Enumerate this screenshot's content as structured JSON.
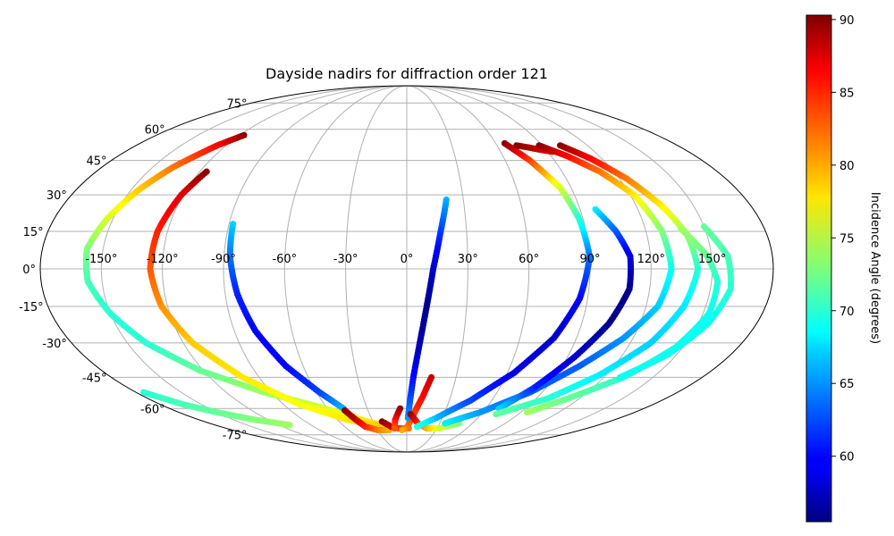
{
  "chart_data": {
    "type": "scatter",
    "projection": "mollweide",
    "title": "Dayside nadirs for diffraction order 121",
    "x_unit": "longitude (degrees)",
    "y_unit": "latitude (degrees)",
    "longitude_ticks": [
      "-150°",
      "-120°",
      "-90°",
      "-60°",
      "-30°",
      "0°",
      "30°",
      "60°",
      "90°",
      "120°",
      "150°"
    ],
    "latitude_ticks": [
      "75°",
      "60°",
      "45°",
      "30°",
      "15°",
      "0°",
      "-15°",
      "-30°",
      "-45°",
      "-60°",
      "-75°"
    ],
    "grid": true,
    "colorbar": {
      "label": "Incidence Angle (degrees)",
      "range": [
        55.5,
        90.3
      ],
      "ticks": [
        "60",
        "65",
        "70",
        "75",
        "80",
        "85",
        "90"
      ],
      "colormap": "jet"
    },
    "series": [
      {
        "points": [
          [
            -117,
            57,
            90
          ],
          [
            -126,
            52,
            86
          ],
          [
            -138,
            42,
            82
          ],
          [
            -146,
            32,
            79
          ],
          [
            -153,
            20,
            76
          ],
          [
            -158,
            8,
            73
          ],
          [
            -157,
            -5,
            71
          ],
          [
            -150,
            -18,
            70
          ],
          [
            -140,
            -30,
            70
          ],
          [
            -122,
            -42,
            72
          ],
          [
            -95,
            -52,
            74
          ],
          [
            -62,
            -60,
            76
          ],
          [
            -35,
            -67,
            78
          ],
          [
            -12,
            -71,
            80
          ]
        ]
      },
      {
        "points": [
          [
            -116,
            40,
            90
          ],
          [
            -121,
            30,
            87
          ],
          [
            -125,
            15,
            85
          ],
          [
            -126,
            0,
            83
          ],
          [
            -123,
            -15,
            81
          ],
          [
            -115,
            -30,
            79
          ],
          [
            -100,
            -45,
            78
          ],
          [
            -78,
            -58,
            77
          ],
          [
            -52,
            -66,
            78
          ],
          [
            -25,
            -70,
            79
          ]
        ]
      },
      {
        "points": [
          [
            -175,
            -52,
            70
          ],
          [
            -163,
            -58,
            71
          ],
          [
            -150,
            -62,
            72
          ],
          [
            -132,
            -66,
            73
          ],
          [
            -110,
            -69,
            74
          ]
        ]
      },
      {
        "points": [
          [
            -88,
            18,
            67
          ],
          [
            -87,
            5,
            64
          ],
          [
            -84,
            -10,
            61
          ],
          [
            -79,
            -25,
            60
          ],
          [
            -70,
            -40,
            60
          ],
          [
            -58,
            -52,
            62
          ],
          [
            -48,
            -60,
            66
          ]
        ]
      },
      {
        "points": [
          [
            -48,
            -61,
            90
          ],
          [
            -44,
            -66,
            88
          ],
          [
            -40,
            -70,
            85
          ],
          [
            -30,
            -72,
            82
          ],
          [
            -18,
            -72,
            80
          ]
        ]
      },
      {
        "points": [
          [
            -22,
            -67,
            90
          ],
          [
            -15,
            -70,
            88
          ],
          [
            -8,
            -71,
            85
          ],
          [
            2,
            -71,
            82
          ]
        ]
      },
      {
        "points": [
          [
            -5,
            -60,
            90
          ],
          [
            -10,
            -66,
            86
          ],
          [
            -12,
            -71,
            83
          ]
        ]
      },
      {
        "points": [
          [
            15,
            -45,
            88
          ],
          [
            11,
            -54,
            86
          ],
          [
            5,
            -64,
            84
          ],
          [
            0,
            -71,
            82
          ],
          [
            -5,
            -72,
            80
          ]
        ]
      },
      {
        "points": [
          [
            21,
            28,
            66
          ],
          [
            17,
            15,
            62
          ],
          [
            13,
            0,
            58
          ],
          [
            10,
            -15,
            56
          ],
          [
            7,
            -30,
            57
          ],
          [
            4,
            -45,
            60
          ],
          [
            2,
            -58,
            63
          ],
          [
            1,
            -65,
            65
          ]
        ]
      },
      {
        "points": [
          [
            3,
            -63,
            90
          ],
          [
            10,
            -68,
            85
          ],
          [
            20,
            -71,
            80
          ],
          [
            32,
            -71,
            76
          ],
          [
            48,
            -68,
            73
          ]
        ]
      },
      {
        "points": [
          [
            66,
            53,
            90
          ],
          [
            75,
            45,
            84
          ],
          [
            84,
            33,
            76
          ],
          [
            88,
            20,
            70
          ],
          [
            90,
            5,
            64
          ],
          [
            86,
            -12,
            60
          ],
          [
            78,
            -28,
            58
          ],
          [
            64,
            -43,
            59
          ],
          [
            45,
            -56,
            62
          ],
          [
            25,
            -65,
            66
          ],
          [
            10,
            -70,
            70
          ]
        ]
      },
      {
        "points": [
          [
            73,
            52,
            90
          ],
          [
            80,
            51,
            89
          ],
          [
            86,
            50,
            88
          ],
          [
            93,
            49,
            87
          ]
        ]
      },
      {
        "points": [
          [
            88,
            52,
            90
          ],
          [
            100,
            47,
            86
          ],
          [
            112,
            40,
            82
          ],
          [
            122,
            30,
            78
          ],
          [
            128,
            15,
            73
          ],
          [
            130,
            0,
            69
          ],
          [
            126,
            -15,
            67
          ],
          [
            115,
            -28,
            65
          ],
          [
            100,
            -40,
            63
          ],
          [
            82,
            -52,
            63
          ],
          [
            58,
            -62,
            65
          ],
          [
            35,
            -68,
            68
          ]
        ]
      },
      {
        "points": [
          [
            98,
            24,
            68
          ],
          [
            105,
            15,
            63
          ],
          [
            110,
            5,
            59
          ],
          [
            110,
            -8,
            56
          ],
          [
            104,
            -22,
            56
          ],
          [
            94,
            -36,
            58
          ],
          [
            82,
            -50,
            61
          ],
          [
            70,
            -60,
            67
          ]
        ]
      },
      {
        "points": [
          [
            102,
            52,
            90
          ],
          [
            113,
            46,
            86
          ],
          [
            124,
            37,
            82
          ],
          [
            133,
            26,
            78
          ],
          [
            140,
            14,
            74
          ],
          [
            143,
            0,
            70
          ],
          [
            139,
            -15,
            68
          ],
          [
            131,
            -30,
            67
          ],
          [
            116,
            -44,
            68
          ],
          [
            98,
            -55,
            70
          ],
          [
            72,
            -63,
            72
          ]
        ]
      },
      {
        "points": [
          [
            138,
            16,
            74
          ],
          [
            148,
            5,
            72
          ],
          [
            153,
            -5,
            70
          ],
          [
            153,
            -18,
            69
          ],
          [
            146,
            -32,
            69
          ],
          [
            132,
            -45,
            70
          ],
          [
            112,
            -55,
            72
          ],
          [
            95,
            -62,
            74
          ]
        ]
      },
      {
        "points": [
          [
            150,
            17,
            72
          ],
          [
            158,
            5,
            71
          ],
          [
            160,
            -8,
            70
          ],
          [
            155,
            -22,
            69
          ],
          [
            145,
            -35,
            69
          ],
          [
            130,
            -45,
            69
          ]
        ]
      }
    ]
  }
}
